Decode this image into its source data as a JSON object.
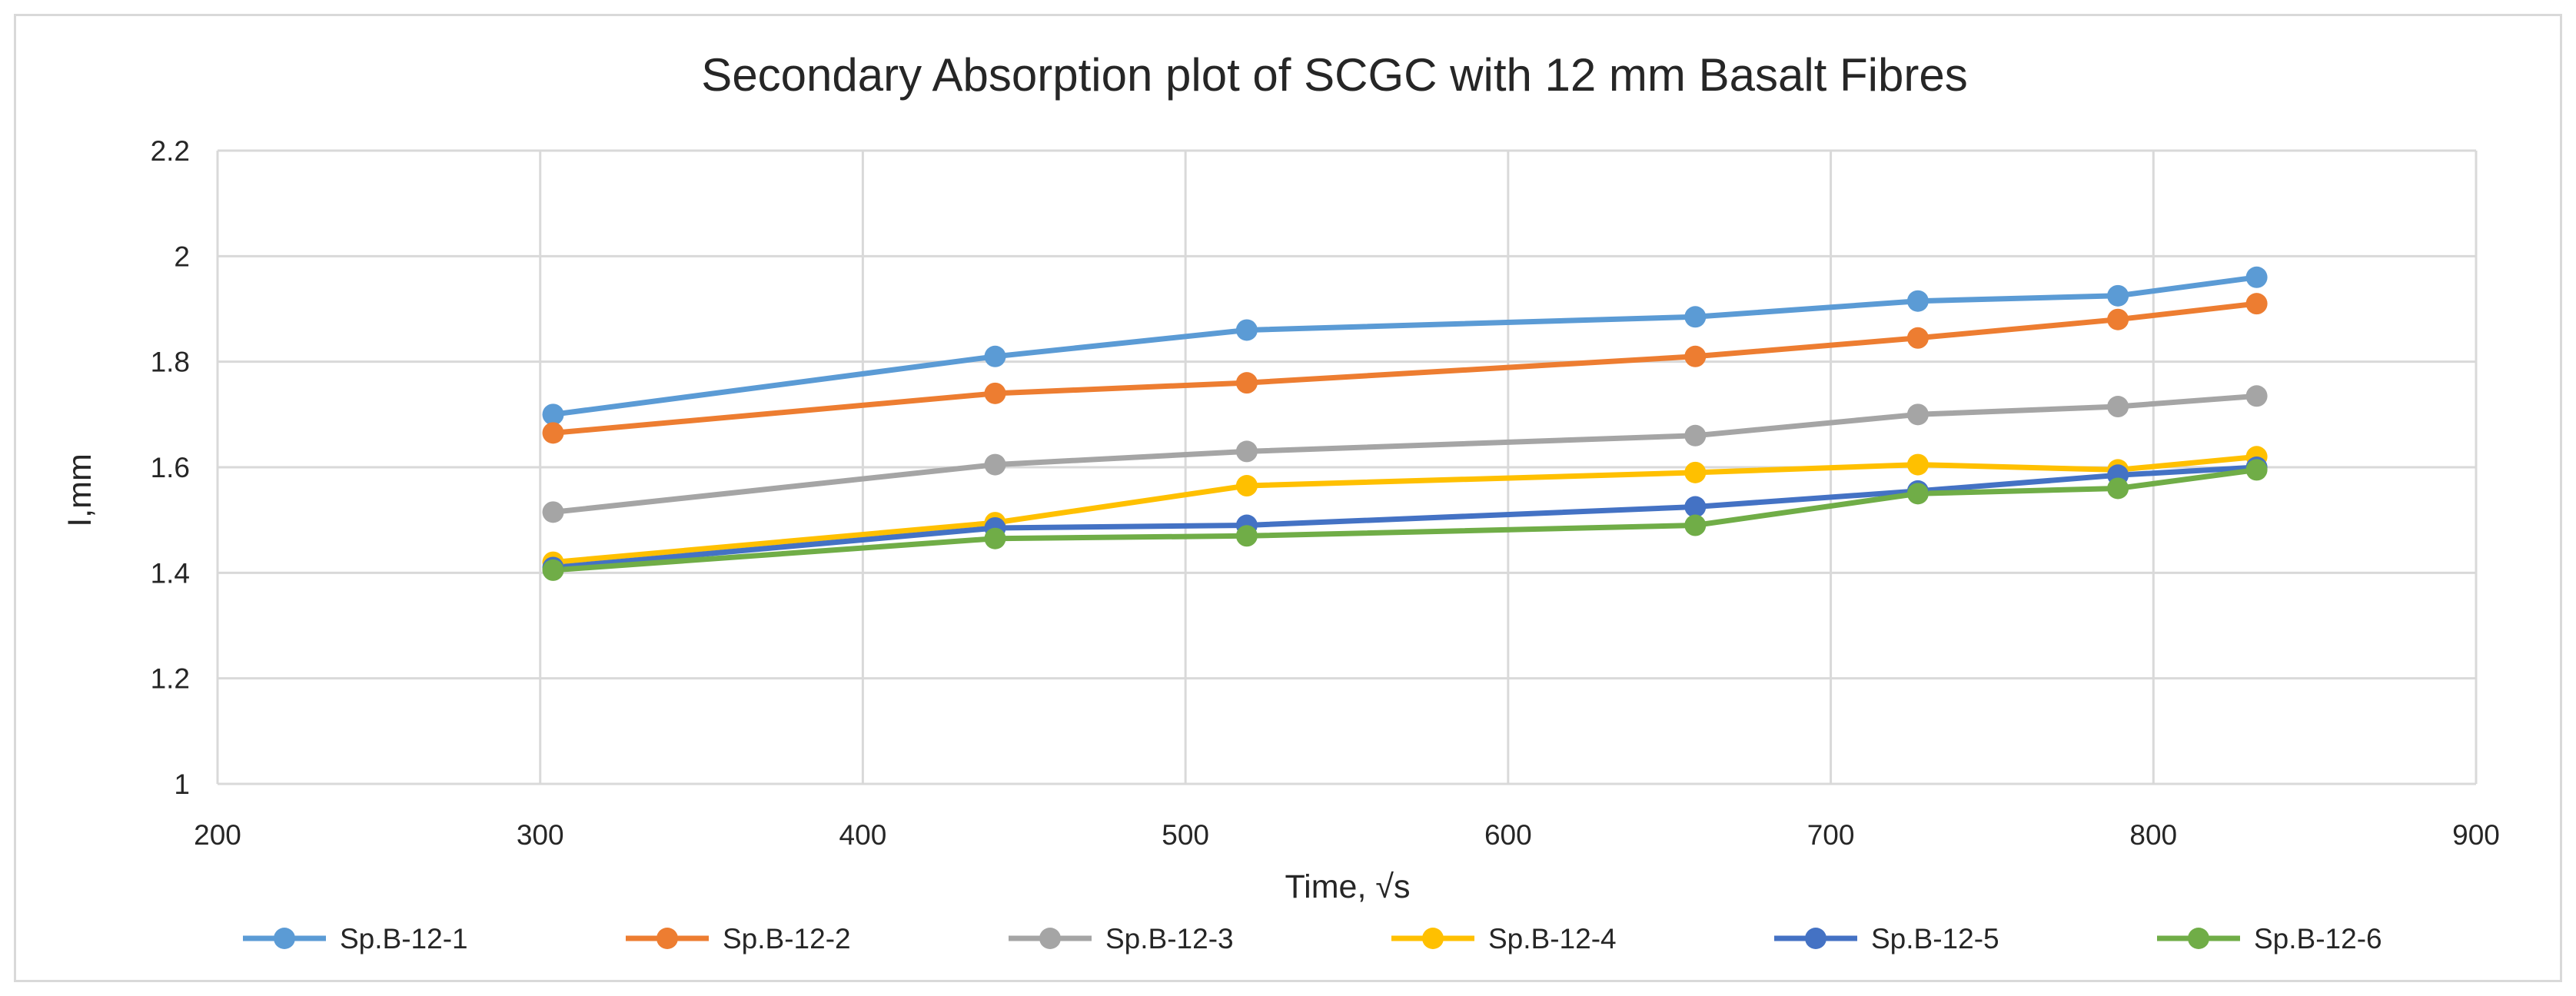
{
  "chart_data": {
    "type": "line",
    "title": "Secondary Absorption plot of SCGC with 12 mm Basalt Fibres",
    "xlabel": "Time, √s",
    "ylabel": "I,mm",
    "xlim": [
      200,
      900
    ],
    "ylim": [
      1,
      2.2
    ],
    "xticks": [
      200,
      300,
      400,
      500,
      600,
      700,
      800,
      900
    ],
    "xtick_labels": [
      "200",
      "300",
      "400",
      "500",
      "600",
      "700",
      "800",
      "900"
    ],
    "yticks": [
      1,
      1.2,
      1.4,
      1.6,
      1.8,
      2,
      2.2
    ],
    "ytick_labels": [
      "1",
      "1.2",
      "1.4",
      "1.6",
      "1.8",
      "2",
      "2.2"
    ],
    "grid": true,
    "legend_position": "bottom",
    "x": [
      304,
      441,
      519,
      658,
      727,
      789,
      832
    ],
    "series": [
      {
        "name": "Sp.B-12-1",
        "color": "#5b9bd5",
        "values": [
          1.7,
          1.81,
          1.86,
          1.885,
          1.915,
          1.925,
          1.96
        ]
      },
      {
        "name": "Sp.B-12-2",
        "color": "#ed7d31",
        "values": [
          1.665,
          1.74,
          1.76,
          1.81,
          1.845,
          1.88,
          1.91
        ]
      },
      {
        "name": "Sp.B-12-3",
        "color": "#a5a5a5",
        "values": [
          1.515,
          1.605,
          1.63,
          1.66,
          1.7,
          1.715,
          1.735
        ]
      },
      {
        "name": "Sp.B-12-4",
        "color": "#ffc000",
        "values": [
          1.42,
          1.495,
          1.565,
          1.59,
          1.605,
          1.595,
          1.62
        ]
      },
      {
        "name": "Sp.B-12-5",
        "color": "#4472c4",
        "values": [
          1.41,
          1.485,
          1.49,
          1.525,
          1.555,
          1.585,
          1.6
        ]
      },
      {
        "name": "Sp.B-12-6",
        "color": "#70ad47",
        "values": [
          1.405,
          1.465,
          1.47,
          1.49,
          1.55,
          1.56,
          1.595
        ]
      }
    ]
  }
}
